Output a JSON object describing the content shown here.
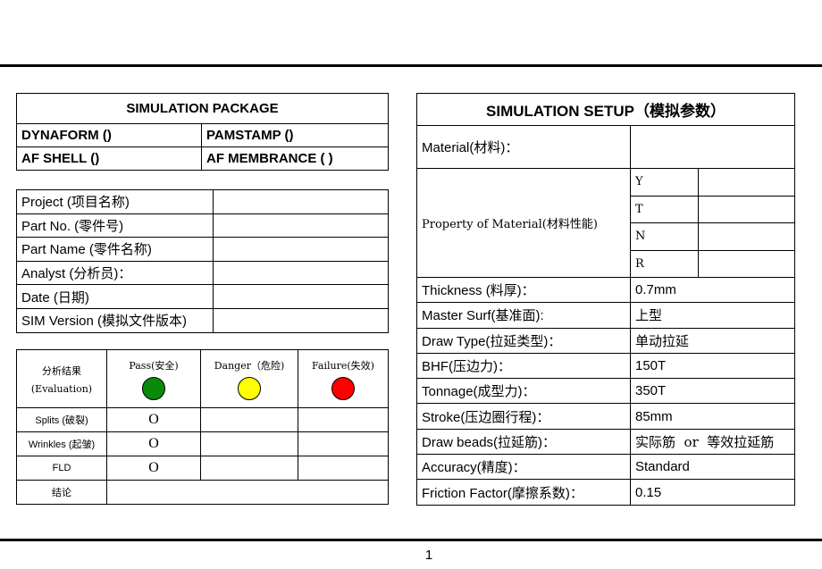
{
  "package": {
    "title": "SIMULATION PACKAGE",
    "options": [
      [
        "DYNAFORM ()",
        "PAMSTAMP ()"
      ],
      [
        "AF SHELL ()",
        "AF MEMBRANCE ( )"
      ]
    ]
  },
  "project": {
    "rows": [
      {
        "label": "Project (项目名称)",
        "value": ""
      },
      {
        "label": "Part  No. (零件号)",
        "value": ""
      },
      {
        "label": "Part  Name (零件名称)",
        "value": ""
      },
      {
        "label": "Analyst (分析员)：",
        "value": ""
      },
      {
        "label": "Date (日期)",
        "value": ""
      },
      {
        "label": "SIM Version (模拟文件版本)",
        "value": ""
      }
    ]
  },
  "evaluation": {
    "header_label_1": "分析结果",
    "header_label_2": "(Evaluation)",
    "pass_label": "Pass(安全)",
    "danger_label": "Danger（危险)",
    "failure_label": "Failure(失效)",
    "colors": {
      "pass": "#0a8a0a",
      "danger": "#ffff00",
      "failure": "#ff0000"
    },
    "rows": [
      {
        "label": "Splits (破裂)",
        "pass": "O",
        "danger": "",
        "failure": ""
      },
      {
        "label": "Wrinkles (起皱)",
        "pass": "O",
        "danger": "",
        "failure": ""
      },
      {
        "label": "FLD",
        "pass": "O",
        "danger": "",
        "failure": ""
      }
    ],
    "conclusion_label": "结论",
    "conclusion_value": ""
  },
  "setup": {
    "title": "SIMULATION SETUP（模拟参数）",
    "material_label": "Material(材料)：",
    "material_value": "",
    "property_label": "Property of Material(材料性能)",
    "property_rows": [
      {
        "name": "Y",
        "value": ""
      },
      {
        "name": "T",
        "value": ""
      },
      {
        "name": "N",
        "value": ""
      },
      {
        "name": "R",
        "value": ""
      }
    ],
    "rows": [
      {
        "label": "Thickness (料厚)：",
        "value": "0.7mm"
      },
      {
        "label": "Master Surf(基准面):",
        "value": "上型"
      },
      {
        "label": "Draw Type(拉延类型)：",
        "value": "单动拉延"
      },
      {
        "label": "BHF(压边力)：",
        "value": "150T"
      },
      {
        "label": "Tonnage(成型力)：",
        "value": "350T"
      },
      {
        "label": "Stroke(压边圈行程)：",
        "value": "85mm"
      },
      {
        "label": "Draw beads(拉延筋)：",
        "value": "实际筋  or  等效拉延筋"
      },
      {
        "label": "Accuracy(精度)：",
        "value": "Standard"
      },
      {
        "label": "Friction Factor(摩擦系数)：",
        "value": "0.15"
      }
    ]
  },
  "page_number": "1"
}
